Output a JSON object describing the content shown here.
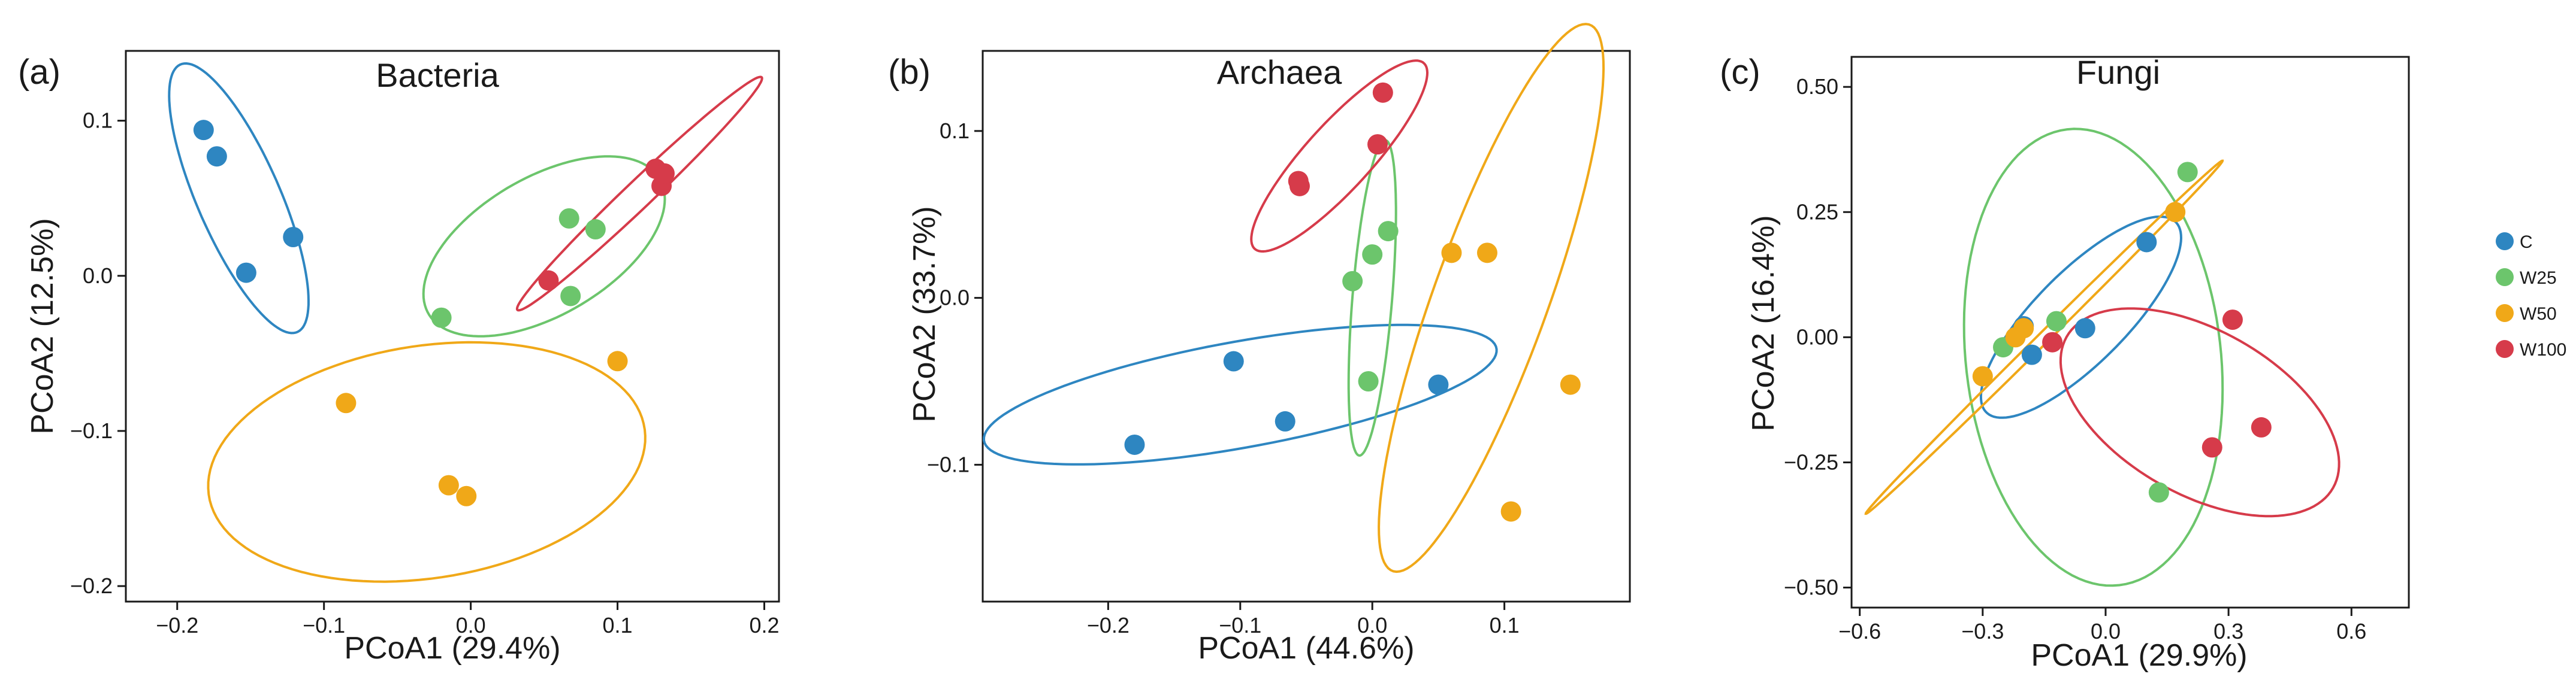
{
  "figure": {
    "groups": [
      {
        "key": "C",
        "label": "C",
        "color": "#2e86c1"
      },
      {
        "key": "W25",
        "label": "W25",
        "color": "#6cc56c"
      },
      {
        "key": "W50",
        "label": "W50",
        "color": "#f0a818"
      },
      {
        "key": "W100",
        "label": "W100",
        "color": "#d63b4a"
      }
    ]
  },
  "chart_data": [
    {
      "type": "scatter",
      "panel_label": "(a)",
      "title": "Bacteria",
      "xlabel": "PCoA1 (29.4%)",
      "ylabel": "PCoA2 (12.5%)",
      "xlim": [
        -0.235,
        0.21
      ],
      "ylim": [
        -0.21,
        0.145
      ],
      "xticks": [
        -0.2,
        -0.1,
        0.0,
        0.1,
        0.2
      ],
      "xtick_labels": [
        "−0.2",
        "−0.1",
        "0.0",
        "0.1",
        "0.2"
      ],
      "yticks": [
        -0.2,
        -0.1,
        0.0,
        0.1
      ],
      "ytick_labels": [
        "−0.2",
        "−0.1",
        "0.0",
        "0.1"
      ],
      "series": [
        {
          "name": "C",
          "points": [
            [
              -0.182,
              0.094
            ],
            [
              -0.173,
              0.077
            ],
            [
              -0.153,
              0.002
            ],
            [
              -0.121,
              0.025
            ]
          ],
          "ellipse": {
            "cx": -0.158,
            "cy": 0.05,
            "rx": 0.095,
            "ry": 0.028,
            "angle": -65
          }
        },
        {
          "name": "W25",
          "points": [
            [
              -0.02,
              -0.027
            ],
            [
              0.067,
              0.037
            ],
            [
              0.085,
              0.03
            ],
            [
              0.068,
              -0.013
            ]
          ],
          "ellipse": {
            "cx": 0.05,
            "cy": 0.019,
            "rx": 0.09,
            "ry": 0.045,
            "angle": 28
          }
        },
        {
          "name": "W50",
          "points": [
            [
              -0.085,
              -0.082
            ],
            [
              -0.015,
              -0.135
            ],
            [
              -0.003,
              -0.142
            ],
            [
              0.1,
              -0.055
            ]
          ],
          "ellipse": {
            "cx": -0.03,
            "cy": -0.12,
            "rx": 0.15,
            "ry": 0.075,
            "angle": 8
          }
        },
        {
          "name": "W100",
          "points": [
            [
              0.053,
              -0.003
            ],
            [
              0.126,
              0.069
            ],
            [
              0.13,
              0.058
            ],
            [
              0.132,
              0.066
            ]
          ],
          "ellipse": {
            "cx": 0.115,
            "cy": 0.053,
            "rx": 0.112,
            "ry": 0.009,
            "angle": 42
          }
        }
      ]
    },
    {
      "type": "scatter",
      "panel_label": "(b)",
      "title": "Archaea",
      "xlabel": "PCoA1 (44.6%)",
      "ylabel": "PCoA2 (33.7%)",
      "xlim": [
        -0.295,
        0.195
      ],
      "ylim": [
        -0.182,
        0.148
      ],
      "xticks": [
        -0.2,
        -0.1,
        0.0,
        0.1
      ],
      "xtick_labels": [
        "−0.2",
        "−0.1",
        "0.0",
        "0.1"
      ],
      "yticks": [
        -0.1,
        0.0,
        0.1
      ],
      "ytick_labels": [
        "−0.1",
        "0.0",
        "0.1"
      ],
      "series": [
        {
          "name": "C",
          "points": [
            [
              -0.18,
              -0.088
            ],
            [
              -0.105,
              -0.038
            ],
            [
              -0.066,
              -0.074
            ],
            [
              0.05,
              -0.052
            ]
          ],
          "ellipse": {
            "cx": -0.1,
            "cy": -0.058,
            "rx": 0.196,
            "ry": 0.032,
            "angle": 8
          }
        },
        {
          "name": "W25",
          "points": [
            [
              -0.015,
              0.01
            ],
            [
              0.0,
              0.026
            ],
            [
              0.012,
              0.04
            ],
            [
              -0.003,
              -0.05
            ]
          ],
          "ellipse": {
            "cx": 0.0,
            "cy": 0.0,
            "rx": 0.095,
            "ry": 0.015,
            "angle": 84
          }
        },
        {
          "name": "W50",
          "points": [
            [
              0.06,
              0.027
            ],
            [
              0.087,
              0.027
            ],
            [
              0.15,
              -0.052
            ],
            [
              0.105,
              -0.128
            ]
          ],
          "ellipse": {
            "cx": 0.09,
            "cy": 0.0,
            "rx": 0.18,
            "ry": 0.042,
            "angle": 65
          }
        },
        {
          "name": "W100",
          "points": [
            [
              -0.056,
              0.07
            ],
            [
              -0.055,
              0.067
            ],
            [
              0.004,
              0.092
            ],
            [
              0.008,
              0.123
            ]
          ],
          "ellipse": {
            "cx": -0.025,
            "cy": 0.085,
            "rx": 0.085,
            "ry": 0.022,
            "angle": 40
          }
        }
      ]
    },
    {
      "type": "scatter",
      "panel_label": "(c)",
      "title": "Fungi",
      "xlabel": "PCoA1 (29.9%)",
      "ylabel": "PCoA2 (16.4%)",
      "xlim": [
        -0.62,
        0.74
      ],
      "ylim": [
        -0.54,
        0.56
      ],
      "xticks": [
        -0.6,
        -0.3,
        0.0,
        0.3,
        0.6
      ],
      "xtick_labels": [
        "−0.6",
        "−0.3",
        "0.0",
        "0.3",
        "0.6"
      ],
      "yticks": [
        -0.5,
        -0.25,
        0.0,
        0.25,
        0.5
      ],
      "ytick_labels": [
        "−0.50",
        "−0.25",
        "0.00",
        "0.25",
        "0.50"
      ],
      "series": [
        {
          "name": "C",
          "points": [
            [
              -0.2,
              0.022
            ],
            [
              -0.18,
              -0.035
            ],
            [
              -0.05,
              0.018
            ],
            [
              0.1,
              0.19
            ]
          ],
          "ellipse": {
            "cx": -0.06,
            "cy": 0.04,
            "rx": 0.3,
            "ry": 0.1,
            "angle": 38
          }
        },
        {
          "name": "W25",
          "points": [
            [
              -0.25,
              -0.02
            ],
            [
              -0.12,
              0.032
            ],
            [
              0.2,
              0.33
            ],
            [
              0.13,
              -0.31
            ]
          ],
          "ellipse": {
            "cx": -0.03,
            "cy": -0.04,
            "rx": 0.46,
            "ry": 0.31,
            "angle": 100
          }
        },
        {
          "name": "W50",
          "points": [
            [
              -0.3,
              -0.078
            ],
            [
              -0.22,
              0.0
            ],
            [
              -0.2,
              0.018
            ],
            [
              0.17,
              0.25
            ]
          ],
          "ellipse": {
            "cx": -0.15,
            "cy": 0.0,
            "rx": 0.56,
            "ry": 0.012,
            "angle": 39
          }
        },
        {
          "name": "W100",
          "points": [
            [
              -0.13,
              -0.01
            ],
            [
              0.26,
              -0.22
            ],
            [
              0.31,
              0.035
            ],
            [
              0.38,
              -0.18
            ]
          ],
          "ellipse": {
            "cx": 0.23,
            "cy": -0.15,
            "rx": 0.36,
            "ry": 0.17,
            "angle": -22
          }
        }
      ]
    }
  ]
}
